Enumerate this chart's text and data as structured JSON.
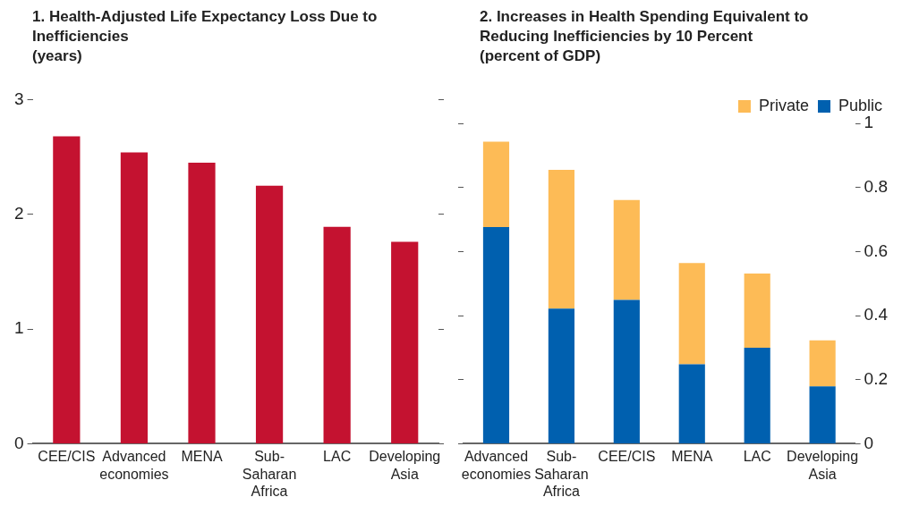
{
  "chart_data": [
    {
      "type": "bar",
      "title": "1. Health-Adjusted Life Expectancy Loss Due to Inefficiencies",
      "subtitle": "(years)",
      "categories": [
        "CEE/CIS",
        "Advanced economies",
        "MENA",
        "Sub-Saharan Africa",
        "LAC",
        "Developing Asia"
      ],
      "values": [
        2.68,
        2.54,
        2.45,
        2.25,
        1.89,
        1.76
      ],
      "color": "#c41230",
      "ylim": [
        0,
        3
      ],
      "yticks": [
        0,
        1,
        2,
        3
      ],
      "grid": false,
      "legend": false
    },
    {
      "type": "bar",
      "title": "2. Increases in Health Spending Equivalent to Reducing Inefficiencies by 10 Percent",
      "subtitle": "(percent of GDP)",
      "categories": [
        "Advanced economies",
        "Sub-Saharan Africa",
        "CEE/CIS",
        "MENA",
        "LAC",
        "Developing Asia"
      ],
      "stacked": true,
      "series": [
        {
          "name": "Public",
          "color": "#0060af",
          "values": [
            0.676,
            0.422,
            0.449,
            0.248,
            0.3,
            0.179
          ],
          "axis": "y2"
        },
        {
          "name": "Private",
          "color": "#fdbb56",
          "values": [
            0.267,
            0.433,
            0.312,
            0.316,
            0.231,
            0.144
          ],
          "axis": "y2"
        }
      ],
      "y2lim": [
        0,
        1
      ],
      "y2ticks": [
        0,
        0.2,
        0.4,
        0.6,
        0.8,
        1
      ],
      "grid": false,
      "legend": "top right"
    }
  ]
}
